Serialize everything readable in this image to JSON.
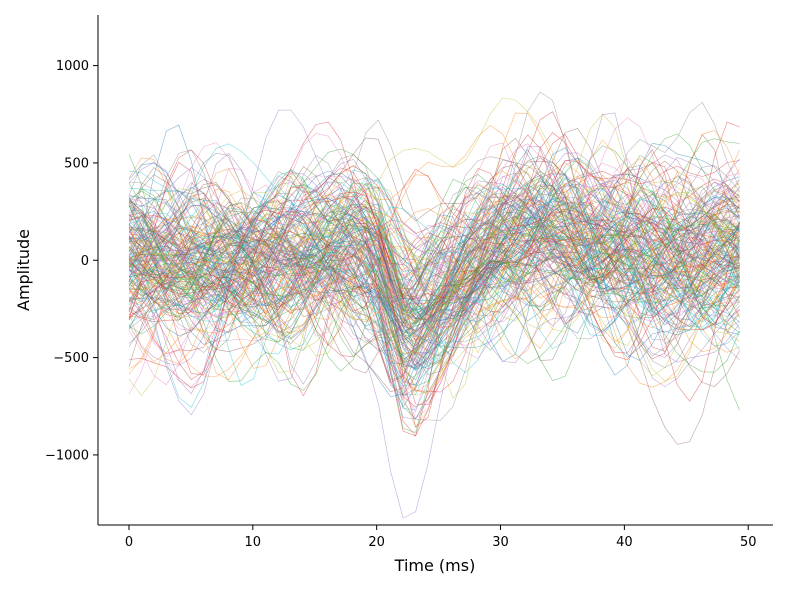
{
  "chart_data": {
    "type": "line",
    "title": "",
    "xlabel": "Time (ms)",
    "ylabel": "Amplitude",
    "xlim": [
      -2.5,
      52
    ],
    "ylim": [
      -1360,
      1260
    ],
    "x_range": [
      0,
      49.3
    ],
    "x_ticks": [
      0,
      10,
      20,
      30,
      40,
      50
    ],
    "y_ticks": [
      -1000,
      -500,
      0,
      500,
      1000
    ],
    "x_tick_labels": [
      "0",
      "10",
      "20",
      "30",
      "40",
      "50"
    ],
    "y_tick_labels": [
      "−1000",
      "−500",
      "0",
      "500",
      "1000"
    ],
    "grid": false,
    "legend": "none",
    "series_count": 200,
    "samples_per_series": 50,
    "palette": [
      "#1f77b4",
      "#ff7f0e",
      "#2ca02c",
      "#d62728",
      "#9467bd",
      "#8c564b",
      "#e377c2",
      "#7f7f7f",
      "#bcbd22",
      "#17becf"
    ],
    "mean_waveform": {
      "x": [
        0,
        5,
        10,
        15,
        18,
        20,
        21,
        22,
        23,
        25,
        28,
        30,
        33,
        35,
        38,
        40,
        45,
        49.3
      ],
      "y": [
        0,
        -20,
        -30,
        30,
        80,
        50,
        -100,
        -260,
        -300,
        -200,
        -50,
        50,
        150,
        150,
        80,
        50,
        -20,
        0
      ]
    }
  }
}
